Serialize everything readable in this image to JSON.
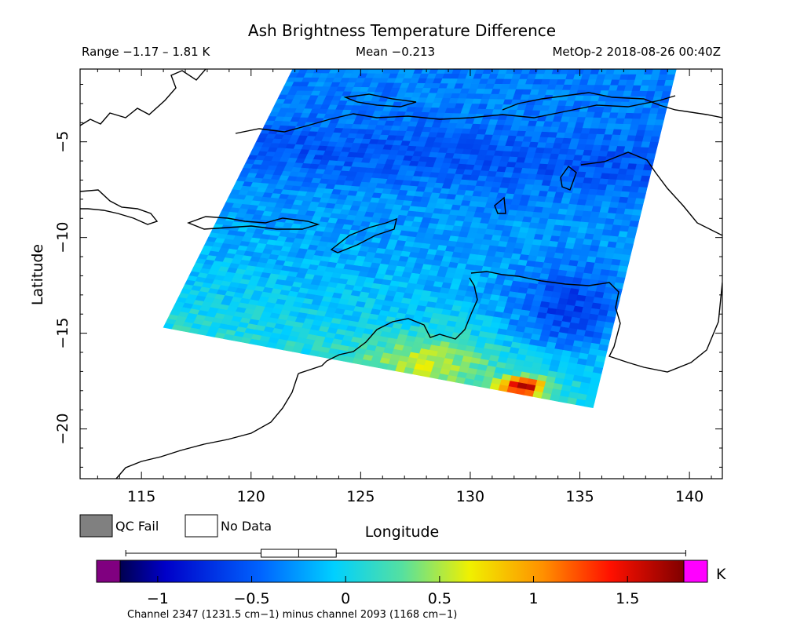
{
  "chart_data": {
    "type": "heatmap",
    "title": "Ash Brightness Temperature Difference",
    "header": {
      "range_text": "Range −1.17 – 1.81 K",
      "mean_text": "Mean −0.213",
      "source_text": "MetOp-2 2018-08-26 00:40Z"
    },
    "xlabel": "Longitude",
    "ylabel": "Latitude",
    "xlim": [
      112.2,
      141.5
    ],
    "ylim": [
      -22.6,
      -1.2
    ],
    "x_ticks": [
      115,
      120,
      125,
      130,
      135,
      140
    ],
    "y_ticks": [
      -5,
      -10,
      -15,
      -20
    ],
    "range_min": -1.17,
    "range_max": 1.81,
    "mean": -0.213,
    "swath_corners": [
      [
        121.9,
        -1.2
      ],
      [
        139.4,
        -1.2
      ],
      [
        135.6,
        -18.9
      ],
      [
        116.0,
        -14.7
      ]
    ],
    "hotspot": {
      "lon": 132.4,
      "lat": -17.8,
      "value": 1.7
    },
    "warm_region": {
      "lon": 128.0,
      "lat": -16.6,
      "value": 0.65
    },
    "cold_region": {
      "lon": 134.5,
      "lat": -13.7,
      "value": -0.75
    },
    "legend": {
      "qc_fail": "QC Fail",
      "no_data": "No Data",
      "qc_color": "#808080"
    },
    "colorbar": {
      "vmin": -1.2,
      "vmax": 1.8,
      "ticks": [
        -1,
        -0.5,
        0,
        0.5,
        1,
        1.5
      ],
      "tick_labels": [
        "−1",
        "−0.5",
        "0",
        "0.5",
        "1",
        "1.5"
      ],
      "unit": "K",
      "under_color": "#800080",
      "over_color": "#ff00ff",
      "box_q1": -0.45,
      "box_median": -0.25,
      "box_q3": -0.05,
      "whisker_min": -1.17,
      "whisker_max": 1.81
    },
    "caption": "Channel 2347 (1231.5 cm−1) minus channel 2093 (1168 cm−1)"
  }
}
